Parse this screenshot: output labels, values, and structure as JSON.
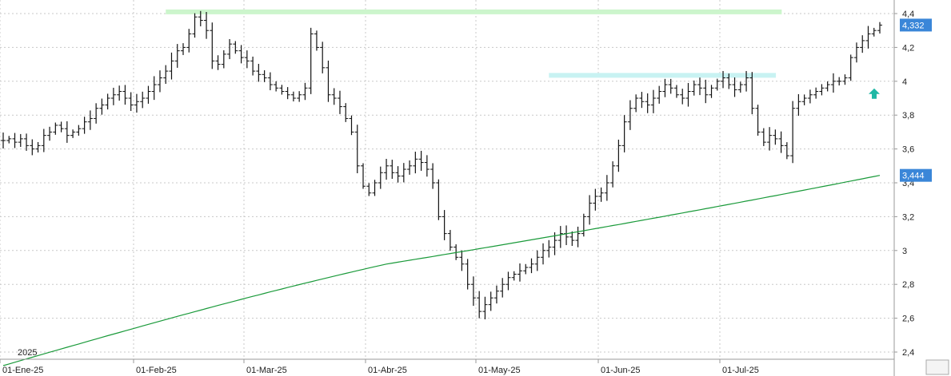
{
  "chart_data": {
    "type": "ohlc",
    "title": "",
    "xlabel": "",
    "ylabel": "",
    "year_label": "2025",
    "ylim": [
      2.35,
      4.45
    ],
    "y_ticks": [
      "2,4",
      "2,6",
      "2,8",
      "3",
      "3,2",
      "3,4",
      "3,6",
      "3,8",
      "4",
      "4,2",
      "4,4"
    ],
    "y_tick_values": [
      2.4,
      2.6,
      2.8,
      3.0,
      3.2,
      3.4,
      3.6,
      3.8,
      4.0,
      4.2,
      4.4
    ],
    "x_ticks": [
      {
        "label": "01-Ene-25",
        "bar": 0
      },
      {
        "label": "01-Feb-25",
        "bar": 23
      },
      {
        "label": "01-Mar-25",
        "bar": 42
      },
      {
        "label": "01-Abr-25",
        "bar": 63
      },
      {
        "label": "01-May-25",
        "bar": 82
      },
      {
        "label": "01-Jun-25",
        "bar": 103
      },
      {
        "label": "01-Jul-25",
        "bar": 124
      }
    ],
    "price_label": "4,332",
    "price_value": 4.332,
    "ma_label": "3,444",
    "ma_value": 3.444,
    "ma_start": 2.32,
    "ma_mid": 2.92,
    "ma_mid_bar": 66,
    "resistance_levels": [
      {
        "value": 4.41,
        "from_bar": 28,
        "to_bar": 133
      },
      {
        "value": 4.035,
        "from_bar": 94,
        "to_bar": 132
      }
    ],
    "signal_arrow_value": 3.92,
    "series_colors": {
      "bars": "#111111",
      "ma": "#1a9a3a",
      "resistance_1": "#ccf5cc",
      "resistance_2": "#c8f2f2",
      "label_box": "#3a86d8",
      "arrow": "#1fb8a5"
    },
    "closes": [
      3.65,
      3.66,
      3.64,
      3.66,
      3.62,
      3.6,
      3.62,
      3.68,
      3.7,
      3.74,
      3.72,
      3.68,
      3.7,
      3.72,
      3.76,
      3.78,
      3.84,
      3.86,
      3.9,
      3.92,
      3.94,
      3.9,
      3.86,
      3.88,
      3.9,
      3.94,
      3.98,
      4.02,
      4.06,
      4.12,
      4.18,
      4.2,
      4.28,
      4.38,
      4.36,
      4.3,
      4.12,
      4.1,
      4.16,
      4.22,
      4.18,
      4.14,
      4.12,
      4.06,
      4.04,
      4.02,
      3.98,
      3.96,
      3.94,
      3.92,
      3.9,
      3.92,
      3.96,
      4.28,
      4.2,
      4.08,
      3.92,
      3.9,
      3.85,
      3.78,
      3.7,
      3.5,
      3.38,
      3.34,
      3.4,
      3.46,
      3.5,
      3.46,
      3.44,
      3.48,
      3.5,
      3.54,
      3.52,
      3.48,
      3.4,
      3.2,
      3.1,
      3.02,
      2.96,
      2.92,
      2.8,
      2.72,
      2.64,
      2.68,
      2.72,
      2.76,
      2.8,
      2.84,
      2.86,
      2.88,
      2.9,
      2.92,
      2.96,
      3.0,
      3.02,
      3.06,
      3.1,
      3.08,
      3.06,
      3.1,
      3.2,
      3.28,
      3.32,
      3.34,
      3.4,
      3.5,
      3.62,
      3.76,
      3.84,
      3.9,
      3.88,
      3.86,
      3.9,
      3.94,
      3.98,
      3.96,
      3.92,
      3.9,
      3.94,
      3.98,
      3.96,
      3.92,
      3.96,
      4.0,
      4.02,
      3.98,
      3.95,
      3.98,
      4.02,
      3.84,
      3.7,
      3.64,
      3.68,
      3.66,
      3.62,
      3.56,
      3.84,
      3.88,
      3.9,
      3.92,
      3.94,
      3.96,
      3.98,
      4.0,
      4.0,
      4.02,
      4.14,
      4.2,
      4.24,
      4.28,
      4.3,
      4.332
    ]
  }
}
